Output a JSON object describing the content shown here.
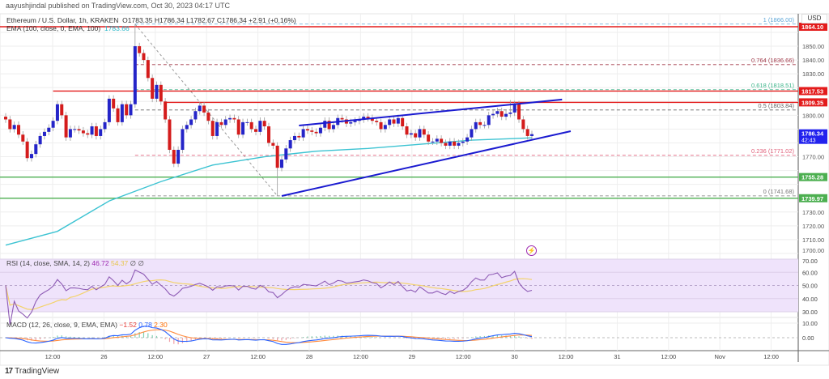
{
  "publisher": "aayushjindal published on TradingView.com, Oct 30, 2023 04:17 UTC",
  "legend": {
    "symbol": "Ethereum / U.S. Dollar, 1h, KRAKEN",
    "ohlc": "O1783.35  H1786.34  L1782.67  C1786.34  +2.91 (+0.16%)",
    "ema_label": "EMA (100, close, 0, EMA, 100)",
    "ema_value": "1783.66"
  },
  "rsi_legend": {
    "label": "RSI (14, close, SMA, 14, 2)",
    "value": "46.72",
    "sma_value": "54.37",
    "extra": "∅ ∅"
  },
  "macd_legend": {
    "label": "MACD (12, 26, close, 9, EMA, EMA)",
    "hist": "−1.52",
    "macd": "0.78",
    "signal": "2.30"
  },
  "currency": "USD",
  "footer": {
    "logo": "17",
    "brand": "TradingView"
  },
  "icons": {
    "alert": "lightning-icon",
    "logo": "tradingview-logo-icon"
  },
  "chart_data": {
    "type": "candlestick",
    "title": "Ethereum / U.S. Dollar, 1h, KRAKEN",
    "colors": {
      "up": "#2424c8",
      "down": "#d41c1c",
      "ema": "#3cc3d2",
      "trendline": "#1a1ad0",
      "resistance": "#e31b1b",
      "support": "#4caf50",
      "rsi": "#8e5bb5",
      "rsi_sma": "#f3d36b",
      "macd": "#2962ff",
      "signal": "#ff8a3d"
    },
    "closes": [
      1797,
      1790,
      1793,
      1786,
      1781,
      1769,
      1772,
      1779,
      1785,
      1788,
      1791,
      1796,
      1808,
      1800,
      1784,
      1790,
      1790,
      1789,
      1787,
      1786,
      1792,
      1785,
      1790,
      1795,
      1812,
      1805,
      1795,
      1808,
      1800,
      1808,
      1850,
      1845,
      1840,
      1827,
      1812,
      1822,
      1810,
      1797,
      1775,
      1765,
      1775,
      1790,
      1793,
      1797,
      1803,
      1807,
      1802,
      1796,
      1785,
      1795,
      1793,
      1797,
      1798,
      1797,
      1786,
      1795,
      1795,
      1790,
      1788,
      1796,
      1792,
      1780,
      1778,
      1762,
      1768,
      1776,
      1782,
      1785,
      1784,
      1790,
      1789,
      1788,
      1787,
      1791,
      1796,
      1790,
      1793,
      1798,
      1797,
      1794,
      1795,
      1796,
      1797,
      1799,
      1798,
      1796,
      1795,
      1790,
      1793,
      1797,
      1794,
      1798,
      1792,
      1786,
      1787,
      1784,
      1790,
      1786,
      1781,
      1781,
      1783,
      1780,
      1778,
      1781,
      1778,
      1780,
      1781,
      1784,
      1790,
      1795,
      1793,
      1793,
      1800,
      1801,
      1803,
      1799,
      1801,
      1802,
      1808,
      1797,
      1790,
      1785,
      1786.34
    ],
    "wick_extremes": [
      {
        "candle": 30,
        "high": 1866.0
      },
      {
        "candle": 63,
        "low": 1741.68
      },
      {
        "candle": 117,
        "high": 1811
      }
    ],
    "ema100": [
      [
        0,
        1706
      ],
      [
        12,
        1716
      ],
      [
        24,
        1738
      ],
      [
        36,
        1752
      ],
      [
        48,
        1764
      ],
      [
        60,
        1770
      ],
      [
        72,
        1774
      ],
      [
        84,
        1776
      ],
      [
        96,
        1779
      ],
      [
        108,
        1782
      ],
      [
        122,
        1783.66
      ]
    ],
    "price_axis": {
      "min": 1700,
      "max": 1860,
      "step": 10
    },
    "time_labels": [
      "12:00",
      "26",
      "12:00",
      "27",
      "12:00",
      "28",
      "12:00",
      "29",
      "12:00",
      "30",
      "12:00",
      "31",
      "12:00",
      "Nov",
      "12:00"
    ],
    "fib_levels": [
      {
        "label": "1 (1866.00)",
        "value": 1866.0,
        "color": "#5fa8d8"
      },
      {
        "label": "0.764 (1836.66)",
        "value": 1836.66,
        "color": "#a33b4b"
      },
      {
        "label": "0.618 (1818.51)",
        "value": 1818.51,
        "color": "#3db58a"
      },
      {
        "label": "0.5 (1803.84)",
        "value": 1803.84,
        "color": "#666666"
      },
      {
        "label": "0.236 (1771.02)",
        "value": 1771.02,
        "color": "#e0607a"
      },
      {
        "label": "0 (1741.68)",
        "value": 1741.68,
        "color": "#777777"
      }
    ],
    "horizontal_lines": [
      {
        "label": "1864.10",
        "value": 1864.1,
        "kind": "resistance"
      },
      {
        "label": "1817.53",
        "value": 1817.53,
        "kind": "resistance"
      },
      {
        "label": "1809.35",
        "value": 1809.35,
        "kind": "resistance"
      },
      {
        "label": "1755.28",
        "value": 1755.28,
        "kind": "support"
      },
      {
        "label": "1739.97",
        "value": 1739.97,
        "kind": "support"
      }
    ],
    "last_price": {
      "label": "1786.34",
      "countdown": "42:43",
      "value": 1786.34
    },
    "trendlines": [
      {
        "name": "channel-upper",
        "from": [
          68,
          1792.6
        ],
        "to": [
          129,
          1811.4
        ]
      },
      {
        "name": "channel-lower",
        "from": [
          64,
          1741.6
        ],
        "to": [
          131,
          1788.5
        ]
      }
    ],
    "rsi_axis": [
      "70.00",
      "60.00",
      "50.00",
      "40.00",
      "30.00"
    ],
    "macd_axis": [
      "10.00",
      "0.00"
    ]
  }
}
